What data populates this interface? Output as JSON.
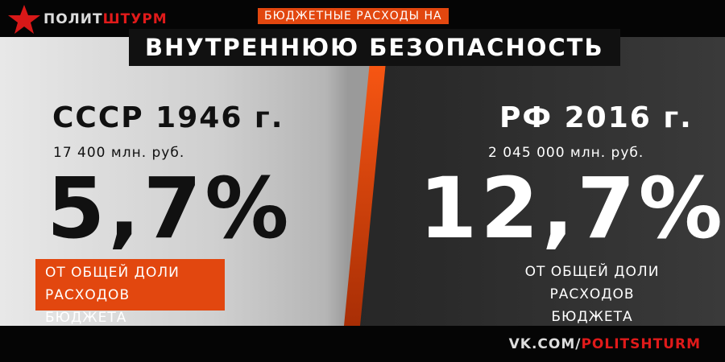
{
  "brand": {
    "logo_part1": "ПОЛИТ",
    "logo_part2": "ШТУРМ",
    "accent": "#e01a1a"
  },
  "header": {
    "subtitle": "БЮДЖЕТНЫЕ РАСХОДЫ НА",
    "title": "ВНУТРЕННЮЮ БЕЗОПАСНОСТЬ"
  },
  "left": {
    "heading": "СССР 1946 г.",
    "amount": "17 400 млн. руб.",
    "percent": "5,7%",
    "note_line1": "ОТ ОБЩЕЙ ДОЛИ",
    "note_line2": "РАСХОДОВ БЮДЖЕТА"
  },
  "right": {
    "heading": "РФ 2016 г.",
    "amount": "2 045 000 млн. руб.",
    "percent": "12,7%",
    "note_line1": "ОТ ОБЩЕЙ ДОЛИ",
    "note_line2": "РАСХОДОВ БЮДЖЕТА"
  },
  "footer": {
    "link_part1": "VK.COM/",
    "link_part2": "POLITSHTURM"
  },
  "colors": {
    "orange": "#e2470f"
  }
}
